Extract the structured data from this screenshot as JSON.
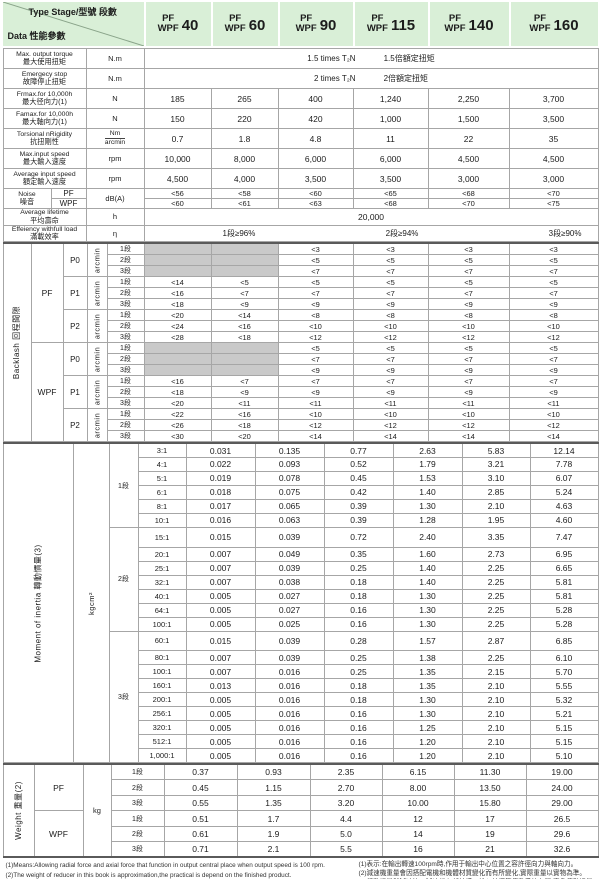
{
  "header": {
    "type_label": "Type Stage/型號 段數",
    "data_label": "Data 性能參數",
    "columns": [
      {
        "pf": "PF",
        "wpf": "WPF",
        "size": "40"
      },
      {
        "pf": "PF",
        "wpf": "WPF",
        "size": "60"
      },
      {
        "pf": "PF",
        "wpf": "WPF",
        "size": "90"
      },
      {
        "pf": "PF",
        "wpf": "WPF",
        "size": "115"
      },
      {
        "pf": "PF",
        "wpf": "WPF",
        "size": "140"
      },
      {
        "pf": "PF",
        "wpf": "WPF",
        "size": "160"
      }
    ]
  },
  "params": {
    "rows": [
      {
        "en": "Max. output torque",
        "cn": "最大使用扭矩",
        "unit": "N.m",
        "span_texts": [
          "1.5 times T₂N",
          "1.5倍額定扭矩"
        ]
      },
      {
        "en": "Emergecy stop",
        "cn": "故障停止扭矩",
        "unit": "N.m",
        "span_texts": [
          "2 times T₂N",
          "2倍額定扭矩"
        ]
      },
      {
        "en": "Frmax.for 10,000h",
        "cn": "最大径向力(1)",
        "unit": "N",
        "values": [
          "185",
          "265",
          "400",
          "1,240",
          "2,250",
          "3,700"
        ]
      },
      {
        "en": "Famax.for 10,000h",
        "cn": "最大軸向力(1)",
        "unit": "N",
        "values": [
          "150",
          "220",
          "420",
          "1,000",
          "1,500",
          "3,500"
        ]
      },
      {
        "en": "Torsional nRigidity",
        "cn": "抗扭剛性",
        "unit_frac": [
          "Nm",
          "arcmin"
        ],
        "values": [
          "0.7",
          "1.8",
          "4.8",
          "11",
          "22",
          "35"
        ]
      },
      {
        "en": "Max.input speed",
        "cn": "最大輸入速度",
        "unit": "rpm",
        "values": [
          "10,000",
          "8,000",
          "6,000",
          "6,000",
          "4,500",
          "4,500"
        ]
      },
      {
        "en": "Average input speed",
        "cn": "額定輸入速度",
        "unit": "rpm",
        "values": [
          "4,500",
          "4,000",
          "3,500",
          "3,500",
          "3,000",
          "3,000"
        ]
      }
    ],
    "noise": {
      "en": "Noise",
      "cn": "噪音",
      "unit": "dB(A)",
      "rows": [
        {
          "label": "PF",
          "values": [
            "<56",
            "<58",
            "<60",
            "<65",
            "<68",
            "<70"
          ]
        },
        {
          "label": "WPF",
          "values": [
            "<60",
            "<61",
            "<63",
            "<68",
            "<70",
            "<75"
          ]
        }
      ]
    },
    "lifetime": {
      "en": "Average lifetime",
      "cn": "平均壽命",
      "unit": "h",
      "value": "20,000"
    },
    "efficiency": {
      "en": "Effeiency withfull load",
      "cn": "滿載效率",
      "unit": "η",
      "texts": [
        "1段≥96%",
        "2段≥94%",
        "3段≥90%"
      ]
    }
  },
  "backlash": {
    "en": "Backlash",
    "cn": "回程間隙",
    "unit": "arcmin",
    "groups": [
      {
        "type": "PF",
        "levels": [
          {
            "p": "P0",
            "rows": [
              {
                "stage": "1段",
                "values": [
                  null,
                  null,
                  "<3",
                  "<3",
                  "<3",
                  "<3"
                ]
              },
              {
                "stage": "2段",
                "values": [
                  null,
                  null,
                  "<5",
                  "<5",
                  "<5",
                  "<5"
                ]
              },
              {
                "stage": "3段",
                "values": [
                  null,
                  null,
                  "<7",
                  "<7",
                  "<7",
                  "<7"
                ]
              }
            ]
          },
          {
            "p": "P1",
            "rows": [
              {
                "stage": "1段",
                "values": [
                  "<14",
                  "<5",
                  "<5",
                  "<5",
                  "<5",
                  "<5"
                ]
              },
              {
                "stage": "2段",
                "values": [
                  "<16",
                  "<7",
                  "<7",
                  "<7",
                  "<7",
                  "<7"
                ]
              },
              {
                "stage": "3段",
                "values": [
                  "<18",
                  "<9",
                  "<9",
                  "<9",
                  "<9",
                  "<9"
                ]
              }
            ]
          },
          {
            "p": "P2",
            "rows": [
              {
                "stage": "1段",
                "values": [
                  "<20",
                  "<14",
                  "<8",
                  "<8",
                  "<8",
                  "<8"
                ]
              },
              {
                "stage": "2段",
                "values": [
                  "<24",
                  "<16",
                  "<10",
                  "<10",
                  "<10",
                  "<10"
                ]
              },
              {
                "stage": "3段",
                "values": [
                  "<28",
                  "<18",
                  "<12",
                  "<12",
                  "<12",
                  "<12"
                ]
              }
            ]
          }
        ]
      },
      {
        "type": "WPF",
        "levels": [
          {
            "p": "P0",
            "rows": [
              {
                "stage": "1段",
                "values": [
                  null,
                  null,
                  "<5",
                  "<5",
                  "<5",
                  "<5"
                ]
              },
              {
                "stage": "2段",
                "values": [
                  null,
                  null,
                  "<7",
                  "<7",
                  "<7",
                  "<7"
                ]
              },
              {
                "stage": "3段",
                "values": [
                  null,
                  null,
                  "<9",
                  "<9",
                  "<9",
                  "<9"
                ]
              }
            ]
          },
          {
            "p": "P1",
            "rows": [
              {
                "stage": "1段",
                "values": [
                  "<16",
                  "<7",
                  "<7",
                  "<7",
                  "<7",
                  "<7"
                ]
              },
              {
                "stage": "2段",
                "values": [
                  "<18",
                  "<9",
                  "<9",
                  "<9",
                  "<9",
                  "<9"
                ]
              },
              {
                "stage": "3段",
                "values": [
                  "<20",
                  "<11",
                  "<11",
                  "<11",
                  "<11",
                  "<11"
                ]
              }
            ]
          },
          {
            "p": "P2",
            "rows": [
              {
                "stage": "1段",
                "values": [
                  "<22",
                  "<16",
                  "<10",
                  "<10",
                  "<10",
                  "<10"
                ]
              },
              {
                "stage": "2段",
                "values": [
                  "<26",
                  "<18",
                  "<12",
                  "<12",
                  "<12",
                  "<12"
                ]
              },
              {
                "stage": "3段",
                "values": [
                  "<30",
                  "<20",
                  "<14",
                  "<14",
                  "<14",
                  "<14"
                ]
              }
            ]
          }
        ]
      }
    ]
  },
  "inertia": {
    "en": "Moment of inertia",
    "cn": "轉動慣量(3)",
    "unit": "kgcm²",
    "stages": [
      {
        "stage": "1段",
        "rows": [
          {
            "ratio": "3:1",
            "values": [
              "0.031",
              "0.135",
              "0.77",
              "2.63",
              "5.83",
              "12.14"
            ]
          },
          {
            "ratio": "4:1",
            "values": [
              "0.022",
              "0.093",
              "0.52",
              "1.79",
              "3.21",
              "7.78"
            ]
          },
          {
            "ratio": "5:1",
            "values": [
              "0.019",
              "0.078",
              "0.45",
              "1.53",
              "3.10",
              "6.07"
            ]
          },
          {
            "ratio": "6:1",
            "values": [
              "0.018",
              "0.075",
              "0.42",
              "1.40",
              "2.85",
              "5.24"
            ]
          },
          {
            "ratio": "8:1",
            "values": [
              "0.017",
              "0.065",
              "0.39",
              "1.30",
              "2.10",
              "4.63"
            ]
          },
          {
            "ratio": "10:1",
            "values": [
              "0.016",
              "0.063",
              "0.39",
              "1.28",
              "1.95",
              "4.60"
            ]
          }
        ]
      },
      {
        "stage": "2段",
        "rows": [
          {
            "ratio": "15:1",
            "values": [
              "0.015",
              "0.039",
              "0.72",
              "2.40",
              "3.35",
              "7.47"
            ]
          },
          {
            "ratio": "20:1",
            "values": [
              "0.007",
              "0.049",
              "0.35",
              "1.60",
              "2.73",
              "6.95"
            ]
          },
          {
            "ratio": "25:1",
            "values": [
              "0.007",
              "0.039",
              "0.25",
              "1.40",
              "2.25",
              "6.65"
            ]
          },
          {
            "ratio": "32:1",
            "values": [
              "0.007",
              "0.038",
              "0.18",
              "1.40",
              "2.25",
              "5.81"
            ]
          },
          {
            "ratio": "40:1",
            "values": [
              "0.005",
              "0.027",
              "0.18",
              "1.30",
              "2.25",
              "5.81"
            ]
          },
          {
            "ratio": "64:1",
            "values": [
              "0.005",
              "0.027",
              "0.16",
              "1.30",
              "2.25",
              "5.28"
            ]
          },
          {
            "ratio": "100:1",
            "values": [
              "0.005",
              "0.025",
              "0.16",
              "1.30",
              "2.25",
              "5.28"
            ]
          }
        ]
      },
      {
        "stage": "3段",
        "rows": [
          {
            "ratio": "60:1",
            "values": [
              "0.015",
              "0.039",
              "0.28",
              "1.57",
              "2.87",
              "6.85"
            ]
          },
          {
            "ratio": "80:1",
            "values": [
              "0.007",
              "0.039",
              "0.25",
              "1.38",
              "2.25",
              "6.10"
            ]
          },
          {
            "ratio": "100:1",
            "values": [
              "0.007",
              "0.016",
              "0.25",
              "1.35",
              "2.15",
              "5.70"
            ]
          },
          {
            "ratio": "160:1",
            "values": [
              "0.013",
              "0.016",
              "0.18",
              "1.35",
              "2.10",
              "5.55"
            ]
          },
          {
            "ratio": "200:1",
            "values": [
              "0.005",
              "0.016",
              "0.18",
              "1.30",
              "2.10",
              "5.32"
            ]
          },
          {
            "ratio": "256:1",
            "values": [
              "0.005",
              "0.016",
              "0.16",
              "1.30",
              "2.10",
              "5.21"
            ]
          },
          {
            "ratio": "320:1",
            "values": [
              "0.005",
              "0.016",
              "0.16",
              "1.25",
              "2.10",
              "5.15"
            ]
          },
          {
            "ratio": "512:1",
            "values": [
              "0.005",
              "0.016",
              "0.16",
              "1.20",
              "2.10",
              "5.15"
            ]
          },
          {
            "ratio": "1,000:1",
            "values": [
              "0.005",
              "0.016",
              "0.16",
              "1.20",
              "2.10",
              "5.10"
            ]
          }
        ]
      }
    ]
  },
  "weight": {
    "en": "Weight",
    "cn": "重量(2)",
    "unit": "kg",
    "groups": [
      {
        "type": "PF",
        "rows": [
          {
            "stage": "1段",
            "values": [
              "0.37",
              "0.93",
              "2.35",
              "6.15",
              "11.30",
              "19.00"
            ]
          },
          {
            "stage": "2段",
            "values": [
              "0.45",
              "1.15",
              "2.70",
              "8.00",
              "13.50",
              "24.00"
            ]
          },
          {
            "stage": "3段",
            "values": [
              "0.55",
              "1.35",
              "3.20",
              "10.00",
              "15.80",
              "29.00"
            ]
          }
        ]
      },
      {
        "type": "WPF",
        "rows": [
          {
            "stage": "1段",
            "values": [
              "0.51",
              "1.7",
              "4.4",
              "12",
              "17",
              "26.5"
            ]
          },
          {
            "stage": "2段",
            "values": [
              "0.61",
              "1.9",
              "5.0",
              "14",
              "19",
              "29.6"
            ]
          },
          {
            "stage": "3段",
            "values": [
              "0.71",
              "2.1",
              "5.5",
              "16",
              "21",
              "32.6"
            ]
          }
        ]
      }
    ]
  },
  "footnotes": {
    "en": [
      "(1)Means:Allowing radial force and axial force that function in output central place when output speed is 100 rpm.",
      "(2)The weight of reducer in this book is approximation,the practical is depend on the finished product.",
      "(3)The moment of inertia relates to the ratio、 frame、 input shaft and to standard motor shaft 、etc."
    ],
    "cn": [
      "(1)表示:在輸出轉速100rpm時,作用于輸出中心位置之容許徑向力與軸向力。",
      "(2)減速機重量會因搭配電機和機體材質變化而有所變化,實際重量以實物為準。",
      "(3)轉動慣量與減速比、減速機內部結構、輸入軸徑等傳動系統有關,直角傳動慣量有變化。"
    ]
  },
  "colors": {
    "header_green": "#d9efd7",
    "disabled_gray": "#c9c9c9",
    "grid_line": "#a6a6a6",
    "section_line": "#5a5a5a"
  }
}
